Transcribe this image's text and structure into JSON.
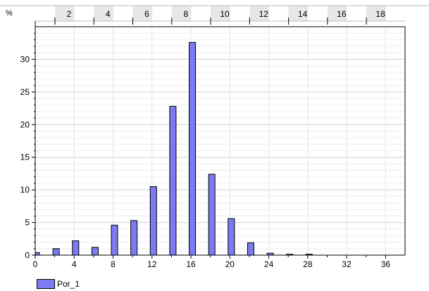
{
  "chart_data": {
    "type": "bar",
    "ylabel": "%",
    "xlim": [
      0,
      38
    ],
    "ylim": [
      0,
      35
    ],
    "x_ticks": [
      0,
      4,
      8,
      12,
      16,
      20,
      24,
      28,
      32,
      36
    ],
    "y_ticks": [
      0,
      5,
      10,
      15,
      20,
      25,
      30
    ],
    "top_ticks": [
      2,
      4,
      6,
      8,
      10,
      12,
      14,
      16,
      18
    ],
    "grid": true,
    "legend_position": "bottom-left",
    "series": [
      {
        "name": "Por_1",
        "color": "#7b7bf2",
        "x": [
          0,
          2,
          4,
          6,
          8,
          10,
          12,
          14,
          16,
          18,
          20,
          22,
          24,
          26,
          28
        ],
        "values": [
          0.4,
          1.0,
          2.2,
          1.2,
          4.6,
          5.3,
          10.5,
          22.8,
          32.6,
          12.4,
          5.6,
          1.9,
          0.3,
          0.15,
          0.15
        ]
      }
    ]
  }
}
